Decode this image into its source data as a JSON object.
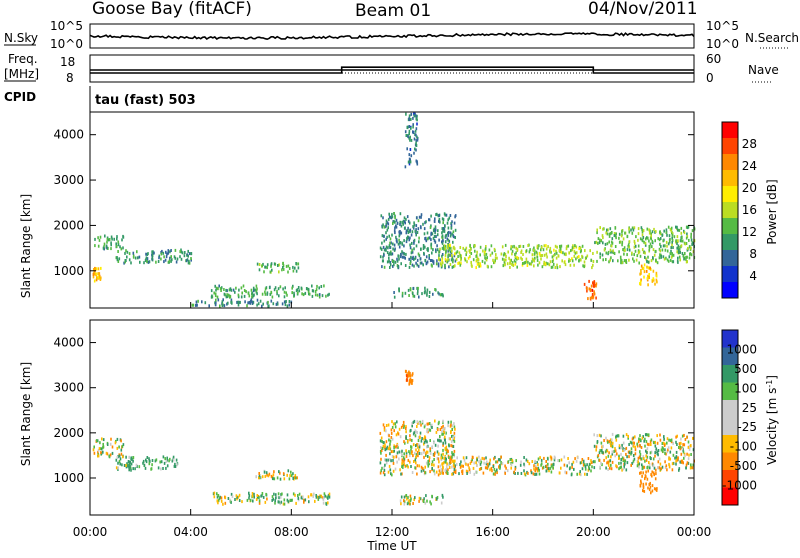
{
  "header": {
    "station": "Goose Bay (fitACF)",
    "beam": "Beam 01",
    "date": "04/Nov/2011"
  },
  "top_panels": {
    "nsky_label": "N.Sky",
    "nsearch_label": "N.Search",
    "freq_label_line1": "Freq.",
    "freq_label_line2": "[MHz]",
    "nave_label": "Nave",
    "cpid_label": "CPID",
    "cpid_text": "tau (fast) 503",
    "noise_left_ticks": [
      "10^5",
      "10^0"
    ],
    "noise_right_ticks": [
      "10^5",
      "10^0"
    ],
    "freq_left_ticks": [
      "18",
      "8"
    ],
    "nave_right_ticks": [
      "60",
      "0"
    ],
    "nave_series": {
      "x_hours": [
        0,
        10,
        10,
        20,
        20,
        24
      ],
      "values": [
        20,
        20,
        33,
        33,
        20,
        20
      ]
    }
  },
  "power_colorbar": {
    "title": "Power [dB]",
    "ticks": [
      "28",
      "24",
      "20",
      "16",
      "12",
      "8",
      "4"
    ],
    "colors": [
      "#ff0000",
      "#ff4400",
      "#ff8800",
      "#ffbb00",
      "#ffee00",
      "#bbdd22",
      "#55bb44",
      "#339966",
      "#336699",
      "#1133cc",
      "#0000ff"
    ]
  },
  "velocity_colorbar": {
    "title": "Velocity [m s^-1]",
    "ticks": [
      "1000",
      "500",
      "100",
      "25",
      "-25",
      "-100",
      "-500",
      "-1000"
    ],
    "colors": [
      "#2233cc",
      "#336699",
      "#339966",
      "#55bb44",
      "#cccccc",
      "#cccccc",
      "#ffbb00",
      "#ff8800",
      "#ff4400",
      "#ff0000"
    ]
  },
  "icons": {
    "nsearch_line": "dotted-line-icon",
    "nave_line": "dotted-line-icon"
  },
  "chart_data": [
    {
      "type": "heatmap",
      "title": "Power [dB]",
      "xlabel": "",
      "ylabel": "Slant Range [km]",
      "xlim": [
        "00:00",
        "24:00"
      ],
      "ylim": [
        180,
        4500
      ],
      "y_ticks": [
        1000,
        2000,
        3000,
        4000
      ],
      "color_scale": [
        0,
        30
      ],
      "regions": [
        {
          "t0": 0.1,
          "t1": 1.3,
          "r0": 1500,
          "r1": 1800,
          "value": 10
        },
        {
          "t0": 0.1,
          "t1": 0.4,
          "r0": 800,
          "r1": 1100,
          "value": 22
        },
        {
          "t0": 1.0,
          "t1": 4.0,
          "r0": 1200,
          "r1": 1500,
          "value": 9
        },
        {
          "t0": 6.5,
          "t1": 8.3,
          "r0": 1000,
          "r1": 1200,
          "value": 12
        },
        {
          "t0": 4.8,
          "t1": 9.5,
          "r0": 450,
          "r1": 700,
          "value": 10
        },
        {
          "t0": 4.0,
          "t1": 8.0,
          "r0": 250,
          "r1": 400,
          "value": 8
        },
        {
          "t0": 11.5,
          "t1": 14.5,
          "r0": 1100,
          "r1": 2300,
          "value": 8
        },
        {
          "t0": 13.8,
          "t1": 20.0,
          "r0": 1100,
          "r1": 1600,
          "value": 14
        },
        {
          "t0": 20.0,
          "t1": 24.0,
          "r0": 1200,
          "r1": 2000,
          "value": 12
        },
        {
          "t0": 19.6,
          "t1": 20.1,
          "r0": 400,
          "r1": 800,
          "value": 26
        },
        {
          "t0": 21.8,
          "t1": 22.5,
          "r0": 700,
          "r1": 1200,
          "value": 20
        },
        {
          "t0": 12.5,
          "t1": 13.0,
          "r0": 3300,
          "r1": 4500,
          "value": 7
        },
        {
          "t0": 12.0,
          "t1": 14.0,
          "r0": 450,
          "r1": 650,
          "value": 9
        }
      ]
    },
    {
      "type": "heatmap",
      "title": "Velocity [m s^-1]",
      "xlabel": "Time UT",
      "ylabel": "Slant Range [km]",
      "xlim": [
        "00:00",
        "24:00"
      ],
      "x_ticks": [
        "00:00",
        "04:00",
        "08:00",
        "12:00",
        "16:00",
        "20:00",
        "00:00"
      ],
      "ylim": [
        180,
        4500
      ],
      "y_ticks": [
        1000,
        2000,
        3000,
        4000
      ],
      "color_scale": [
        -1000,
        1000
      ],
      "regions": [
        {
          "t0": 0.1,
          "t1": 1.3,
          "r0": 1500,
          "r1": 1900,
          "value": 0
        },
        {
          "t0": 1.0,
          "t1": 3.5,
          "r0": 1200,
          "r1": 1500,
          "value": 150
        },
        {
          "t0": 6.5,
          "t1": 8.3,
          "r0": 1000,
          "r1": 1200,
          "value": 0
        },
        {
          "t0": 4.8,
          "t1": 9.5,
          "r0": 450,
          "r1": 700,
          "value": 60
        },
        {
          "t0": 11.5,
          "t1": 14.5,
          "r0": 1100,
          "r1": 2300,
          "value": 0
        },
        {
          "t0": 13.8,
          "t1": 20.0,
          "r0": 1100,
          "r1": 1500,
          "value": 0
        },
        {
          "t0": 20.0,
          "t1": 24.0,
          "r0": 1200,
          "r1": 2000,
          "value": 0
        },
        {
          "t0": 21.8,
          "t1": 22.5,
          "r0": 700,
          "r1": 1200,
          "value": -300
        },
        {
          "t0": 12.5,
          "t1": 12.8,
          "r0": 3100,
          "r1": 3400,
          "value": -350
        },
        {
          "t0": 12.0,
          "t1": 14.0,
          "r0": 450,
          "r1": 650,
          "value": 0
        }
      ]
    }
  ]
}
